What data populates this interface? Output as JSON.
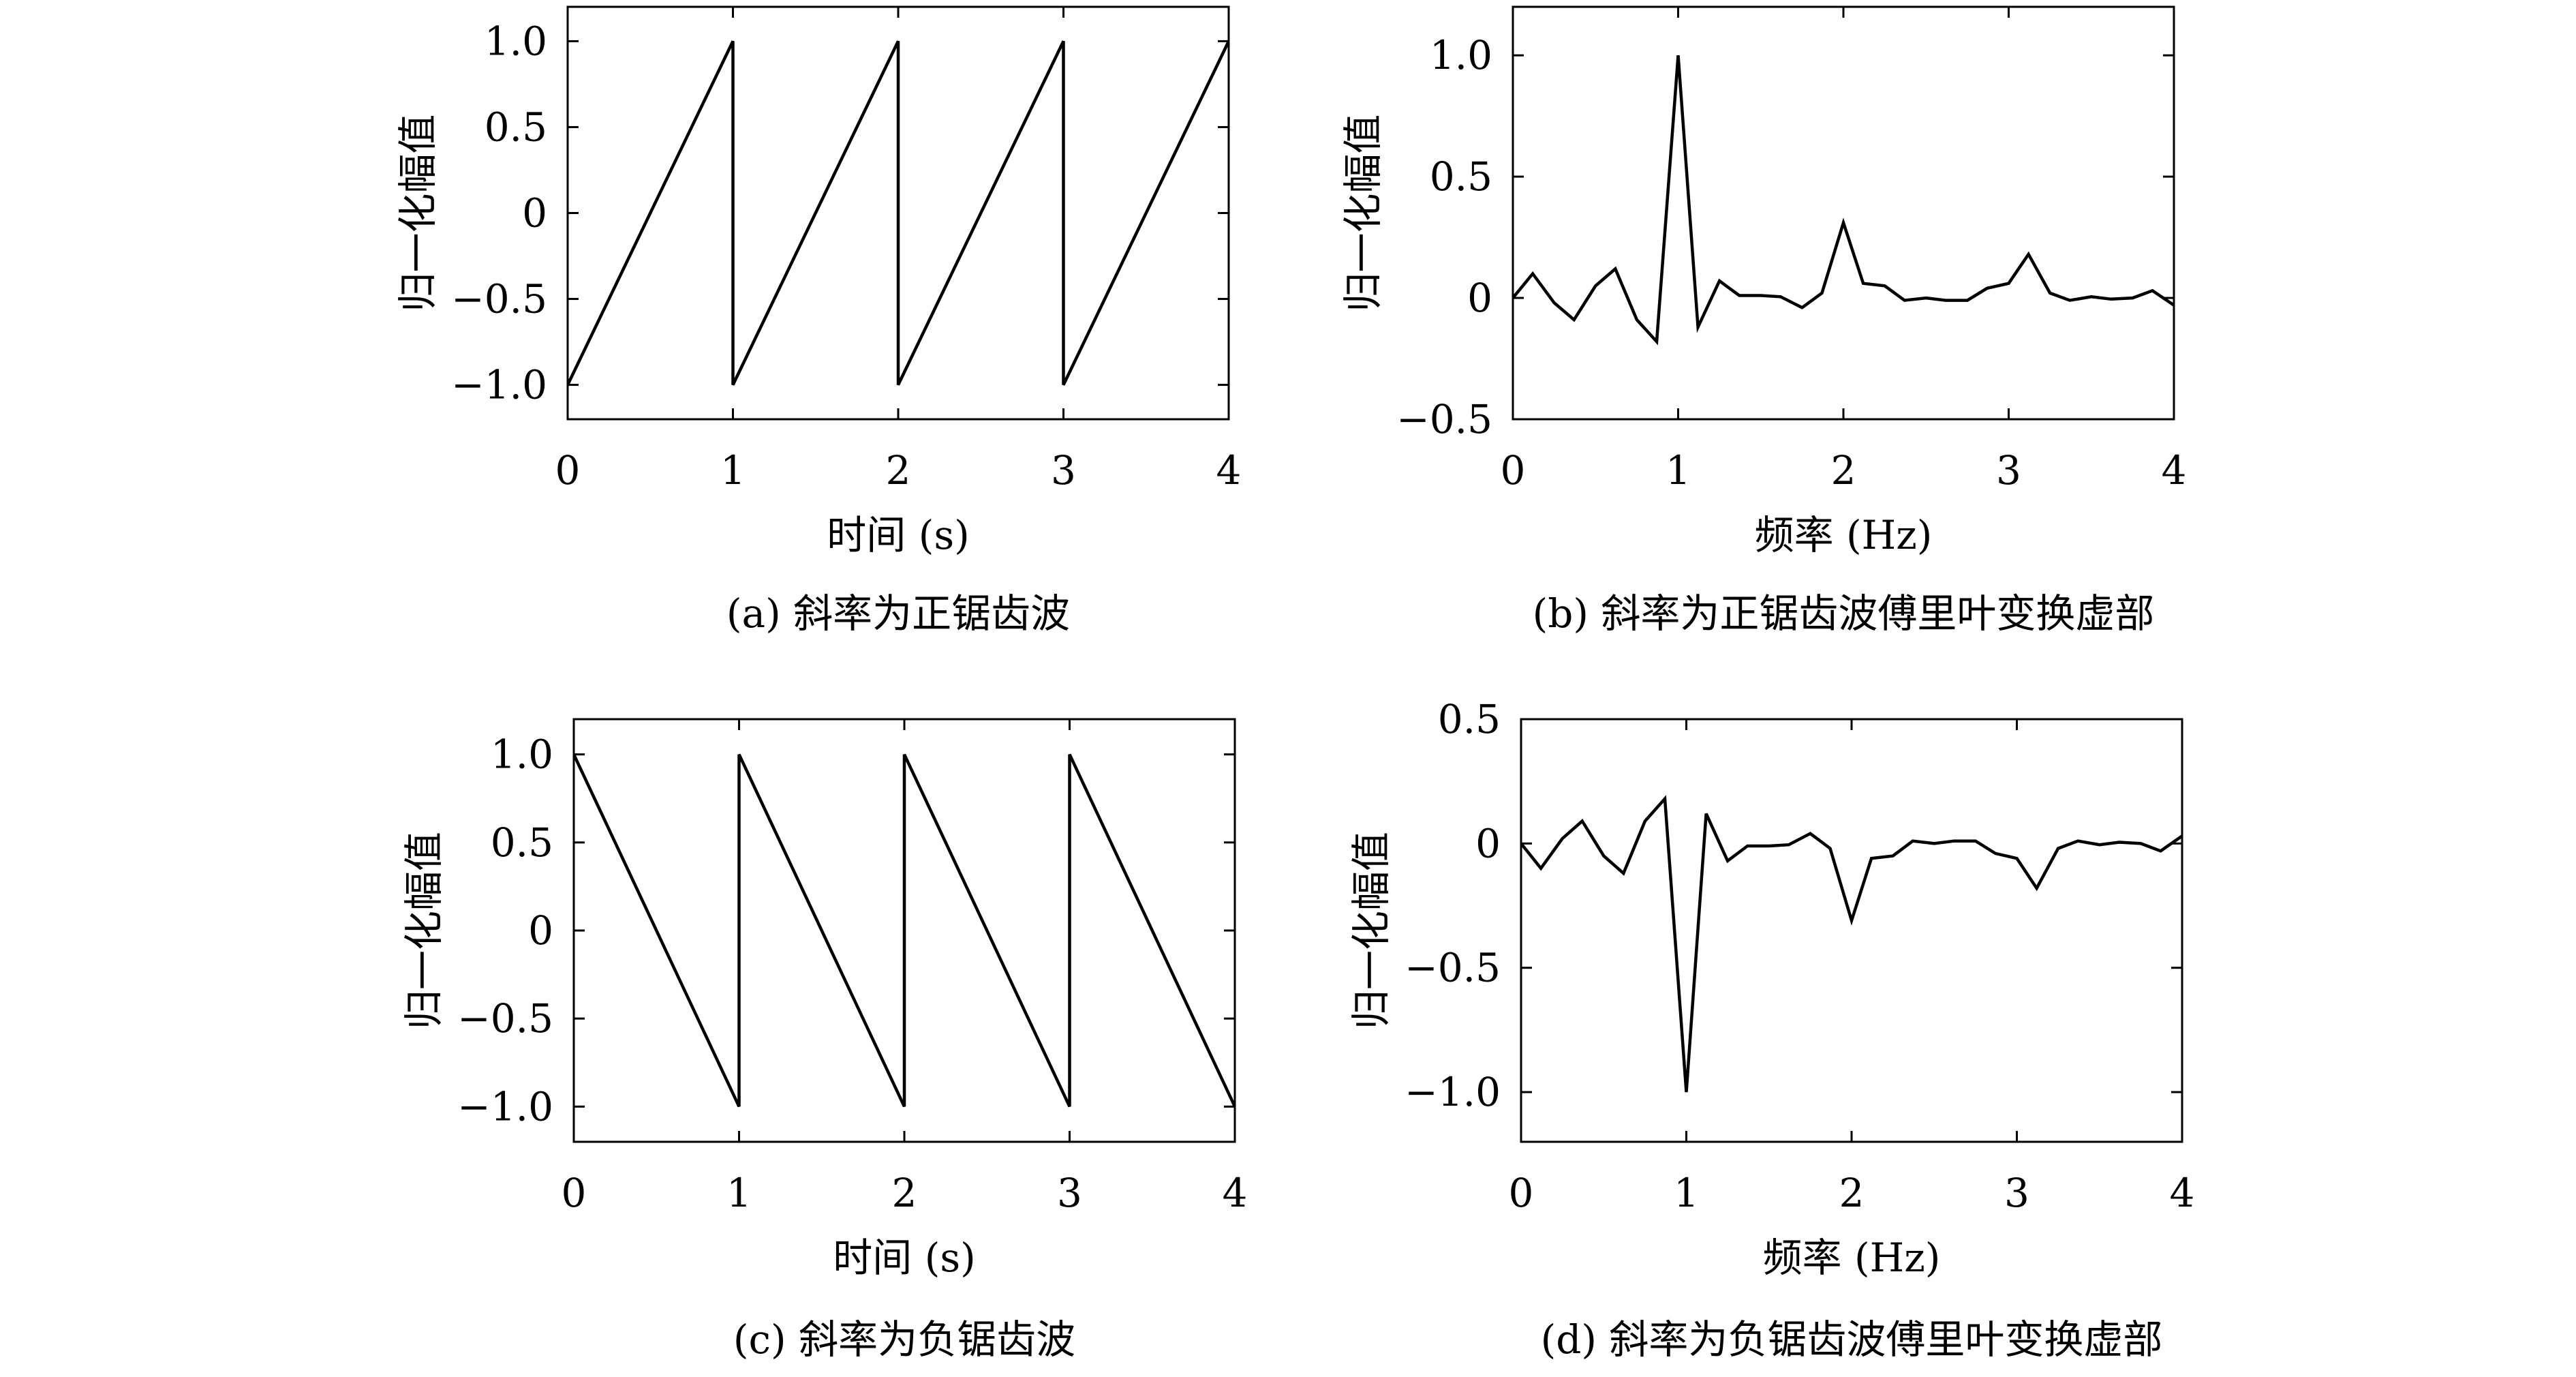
{
  "chart_data": [
    {
      "id": "a",
      "type": "line",
      "caption": "(a) 斜率为正锯齿波",
      "xlabel": "时间 (s)",
      "ylabel": "归一化幅值",
      "xlim": [
        0,
        4
      ],
      "ylim": [
        -1.2,
        1.2
      ],
      "xticks": [
        0,
        1,
        2,
        3,
        4
      ],
      "xtick_labels": [
        "0",
        "1",
        "2",
        "3",
        "4"
      ],
      "yticks": [
        -1.0,
        -0.5,
        0,
        0.5,
        1.0
      ],
      "ytick_labels": [
        "−1.0",
        "−0.5",
        "0",
        "0.5",
        "1.0"
      ],
      "grid": false,
      "series": [
        {
          "x": [
            0,
            1,
            1,
            2,
            2,
            3,
            3,
            4
          ],
          "y": [
            -1,
            1,
            -1,
            1,
            -1,
            1,
            -1,
            1
          ]
        }
      ]
    },
    {
      "id": "b",
      "type": "line",
      "caption": "(b) 斜率为正锯齿波傅里叶变换虚部",
      "xlabel": "频率 (Hz)",
      "ylabel": "归一化幅值",
      "xlim": [
        0,
        4
      ],
      "ylim": [
        -0.5,
        1.2
      ],
      "xticks": [
        0,
        1,
        2,
        3,
        4
      ],
      "xtick_labels": [
        "0",
        "1",
        "2",
        "3",
        "4"
      ],
      "yticks": [
        -0.5,
        0,
        0.5,
        1.0
      ],
      "ytick_labels": [
        "−0.5",
        "0",
        "0.5",
        "1.0"
      ],
      "grid": false,
      "series": [
        {
          "x": [
            0,
            0.12,
            0.25,
            0.37,
            0.5,
            0.62,
            0.75,
            0.87,
            1.0,
            1.12,
            1.25,
            1.37,
            1.5,
            1.62,
            1.75,
            1.87,
            2.0,
            2.12,
            2.25,
            2.37,
            2.5,
            2.62,
            2.75,
            2.87,
            3.0,
            3.12,
            3.25,
            3.37,
            3.5,
            3.62,
            3.75,
            3.87,
            4.0
          ],
          "y": [
            0,
            0.1,
            -0.02,
            -0.09,
            0.05,
            0.12,
            -0.09,
            -0.18,
            1.0,
            -0.12,
            0.07,
            0.01,
            0.01,
            0.005,
            -0.04,
            0.02,
            0.31,
            0.06,
            0.05,
            -0.01,
            0.0,
            -0.01,
            -0.01,
            0.04,
            0.06,
            0.18,
            0.02,
            -0.01,
            0.005,
            -0.005,
            0.0,
            0.03,
            -0.03
          ]
        }
      ]
    },
    {
      "id": "c",
      "type": "line",
      "caption": "(c) 斜率为负锯齿波",
      "xlabel": "时间 (s)",
      "ylabel": "归一化幅值",
      "xlim": [
        0,
        4
      ],
      "ylim": [
        -1.2,
        1.2
      ],
      "xticks": [
        0,
        1,
        2,
        3,
        4
      ],
      "xtick_labels": [
        "0",
        "1",
        "2",
        "3",
        "4"
      ],
      "yticks": [
        -1.0,
        -0.5,
        0,
        0.5,
        1.0
      ],
      "ytick_labels": [
        "−1.0",
        "−0.5",
        "0",
        "0.5",
        "1.0"
      ],
      "grid": false,
      "series": [
        {
          "x": [
            0,
            1,
            1,
            2,
            2,
            3,
            3,
            4
          ],
          "y": [
            1,
            -1,
            1,
            -1,
            1,
            -1,
            1,
            -1
          ]
        }
      ]
    },
    {
      "id": "d",
      "type": "line",
      "caption": "(d) 斜率为负锯齿波傅里叶变换虚部",
      "xlabel": "频率 (Hz)",
      "ylabel": "归一化幅值",
      "xlim": [
        0,
        4
      ],
      "ylim": [
        -1.2,
        0.5
      ],
      "xticks": [
        0,
        1,
        2,
        3,
        4
      ],
      "xtick_labels": [
        "0",
        "1",
        "2",
        "3",
        "4"
      ],
      "yticks": [
        -1.0,
        -0.5,
        0,
        0.5
      ],
      "ytick_labels": [
        "−1.0",
        "−0.5",
        "0",
        "0.5"
      ],
      "grid": false,
      "series": [
        {
          "x": [
            0,
            0.12,
            0.25,
            0.37,
            0.5,
            0.62,
            0.75,
            0.87,
            1.0,
            1.12,
            1.25,
            1.37,
            1.5,
            1.62,
            1.75,
            1.87,
            2.0,
            2.12,
            2.25,
            2.37,
            2.5,
            2.62,
            2.75,
            2.87,
            3.0,
            3.12,
            3.25,
            3.37,
            3.5,
            3.62,
            3.75,
            3.87,
            4.0
          ],
          "y": [
            0,
            -0.1,
            0.02,
            0.09,
            -0.05,
            -0.12,
            0.09,
            0.18,
            -1.0,
            0.12,
            -0.07,
            -0.01,
            -0.01,
            -0.005,
            0.04,
            -0.02,
            -0.31,
            -0.06,
            -0.05,
            0.01,
            0.0,
            0.01,
            0.01,
            -0.04,
            -0.06,
            -0.18,
            -0.02,
            0.01,
            -0.005,
            0.005,
            0.0,
            -0.03,
            0.03
          ]
        }
      ]
    }
  ]
}
